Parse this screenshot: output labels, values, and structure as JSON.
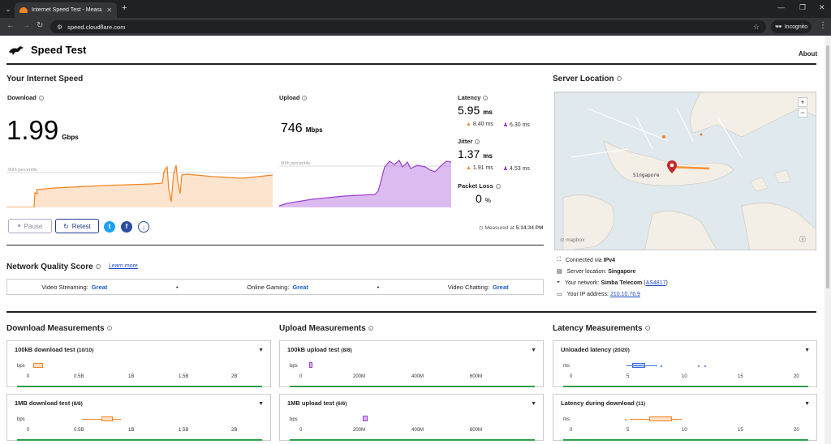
{
  "browser": {
    "tab_title": "Internet Speed Test - Measure",
    "url": "speed.cloudflare.com",
    "incognito": "Incognito"
  },
  "site": {
    "title": "Speed Test",
    "about": "About"
  },
  "speed": {
    "heading": "Your Internet Speed",
    "download_label": "Download",
    "download_value": "1.99",
    "download_unit": "Gbps",
    "upload_label": "Upload",
    "upload_value": "746",
    "upload_unit": "Mbps",
    "percentile": "90th percentile",
    "latency_label": "Latency",
    "latency_value": "5.95",
    "latency_unit": "ms",
    "latency_down": "8.40 ms",
    "latency_up": "6.30 ms",
    "jitter_label": "Jitter",
    "jitter_value": "1.37",
    "jitter_unit": "ms",
    "jitter_down": "1.91 ms",
    "jitter_up": "4.53 ms",
    "loss_label": "Packet Loss",
    "loss_value": "0",
    "loss_unit": "%",
    "pause": "Pause",
    "retest": "Retest",
    "measured": "Measured at 5:14:34 PM",
    "measured_prefix": "Measured at",
    "measured_time": "5:14:34 PM"
  },
  "server": {
    "heading": "Server Location",
    "map_place": "Singapore",
    "map_attribution": "mapbox",
    "connected": "Connected via",
    "connected_value": "IPv4",
    "location": "Server location:",
    "location_value": "Singapore",
    "network": "Your network:",
    "network_value": "Simba Telecom",
    "asn": "AS4817",
    "ip": "Your IP address:",
    "ip_value": "210.10.76.9"
  },
  "quality": {
    "heading": "Network Quality Score",
    "learn": "Learn more",
    "items": [
      {
        "label": "Video Streaming:",
        "value": "Great"
      },
      {
        "label": "Online Gaming:",
        "value": "Great"
      },
      {
        "label": "Video Chatting:",
        "value": "Great"
      }
    ]
  },
  "measurements": {
    "download_heading": "Download Measurements",
    "upload_heading": "Upload Measurements",
    "latency_heading": "Latency Measurements",
    "cards": [
      {
        "title": "100kB download test",
        "count": "(10/10)",
        "unit": "bps",
        "ticks": [
          "0",
          "0.5B",
          "1B",
          "1.5B",
          "2B"
        ]
      },
      {
        "title": "100kB upload test",
        "count": "(8/8)",
        "unit": "bps",
        "ticks": [
          "0",
          "200M",
          "400M",
          "600M"
        ]
      },
      {
        "title": "Unloaded latency",
        "count": "(20/20)",
        "unit": "ms",
        "ticks": [
          "0",
          "5",
          "10",
          "15",
          "20"
        ]
      },
      {
        "title": "1MB download test",
        "count": "(8/8)",
        "unit": "bps",
        "ticks": [
          "0",
          "0.5B",
          "1B",
          "1.5B",
          "2B"
        ]
      },
      {
        "title": "1MB upload test",
        "count": "(6/6)",
        "unit": "bps",
        "ticks": [
          "0",
          "200M",
          "400M",
          "600M"
        ]
      },
      {
        "title": "Latency during download",
        "count": "(11)",
        "unit": "ms",
        "ticks": [
          "0",
          "5",
          "10",
          "15",
          "20"
        ]
      }
    ]
  },
  "colors": {
    "download": "#f6821f",
    "upload": "#9b3fd4",
    "latency": "#3b6fd8",
    "great": "#1a5ec9",
    "baseline": "#2ea04a"
  }
}
